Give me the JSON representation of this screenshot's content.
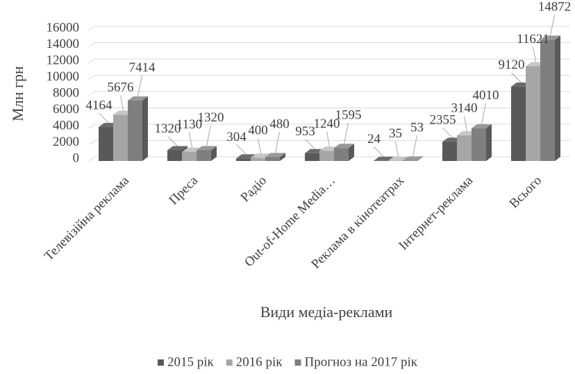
{
  "chart_data": {
    "type": "bar3d",
    "categories": [
      "Телевізійна реклама",
      "Преса",
      "Радіо",
      "Out-of-Home Media…",
      "Реклама в кінотеатрах",
      "Інтернет-реклама",
      "Всього"
    ],
    "series": [
      {
        "name": "2015 рік",
        "color": "#595959",
        "values": [
          4164,
          1320,
          304,
          953,
          24,
          2355,
          9120
        ]
      },
      {
        "name": "2016 рік",
        "color": "#a6a6a6",
        "values": [
          5676,
          1130,
          400,
          1240,
          35,
          3140,
          11621
        ]
      },
      {
        "name": "Прогноз на 2017 рік",
        "color": "#7f7f7f",
        "values": [
          7414,
          1320,
          480,
          1595,
          53,
          4010,
          14872
        ]
      }
    ],
    "ylabel": "Млн грн",
    "xlabel": "Види медіа-реклами",
    "ylim": [
      0,
      16000
    ],
    "yticks": [
      0,
      2000,
      4000,
      6000,
      8000,
      10000,
      12000,
      14000,
      16000
    ],
    "grid": true,
    "legend": "bottom"
  }
}
